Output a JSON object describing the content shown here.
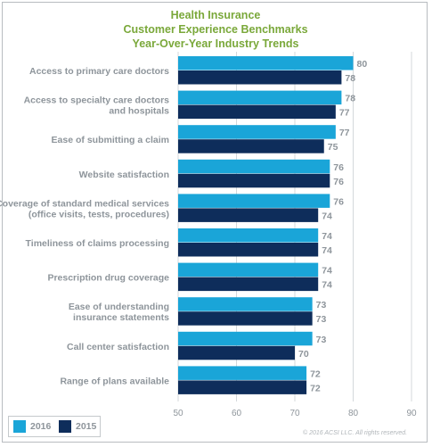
{
  "title_lines": [
    "Health Insurance",
    "Customer Experience Benchmarks",
    "Year-Over-Year Industry Trends"
  ],
  "copyright": "© 2016 ACSI LLC. All rights reserved.",
  "colors": {
    "title": "#7aa83a",
    "series_2016": "#1aa5d8",
    "series_2015": "#0e2d5b",
    "text": "#8e959b",
    "grid": "#d4d8db"
  },
  "legend": [
    {
      "label": "2016",
      "color": "#1aa5d8"
    },
    {
      "label": "2015",
      "color": "#0e2d5b"
    }
  ],
  "chart_data": {
    "type": "bar",
    "orientation": "horizontal",
    "categories": [
      [
        "Access to primary care doctors"
      ],
      [
        "Access to specialty care doctors",
        "and hospitals"
      ],
      [
        "Ease of submitting a claim"
      ],
      [
        "Website satisfaction"
      ],
      [
        "Coverage of standard medical services",
        "(office visits, tests, procedures)"
      ],
      [
        "Timeliness of claims processing"
      ],
      [
        "Prescription drug coverage"
      ],
      [
        "Ease of understanding",
        "insurance statements"
      ],
      [
        "Call center satisfaction"
      ],
      [
        "Range of plans available"
      ]
    ],
    "series": [
      {
        "name": "2016",
        "values": [
          80,
          78,
          77,
          76,
          76,
          74,
          74,
          73,
          73,
          72
        ]
      },
      {
        "name": "2015",
        "values": [
          78,
          77,
          75,
          76,
          74,
          74,
          74,
          73,
          70,
          72
        ]
      }
    ],
    "xlim": [
      50,
      90
    ],
    "xticks": [
      50,
      60,
      70,
      80,
      90
    ],
    "grid": true,
    "legend_position": "bottom-left"
  }
}
